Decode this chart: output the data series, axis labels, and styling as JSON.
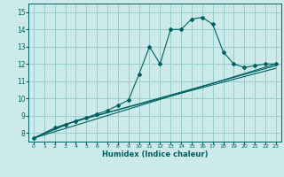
{
  "title": "",
  "xlabel": "Humidex (Indice chaleur)",
  "ylabel": "",
  "bg_color": "#cceaea",
  "line_color": "#006060",
  "grid_color": "#99cccc",
  "xlim": [
    -0.5,
    23.5
  ],
  "ylim": [
    7.5,
    15.5
  ],
  "xticks": [
    0,
    1,
    2,
    3,
    4,
    5,
    6,
    7,
    8,
    9,
    10,
    11,
    12,
    13,
    14,
    15,
    16,
    17,
    18,
    19,
    20,
    21,
    22,
    23
  ],
  "yticks": [
    8,
    9,
    10,
    11,
    12,
    13,
    14,
    15
  ],
  "series": [
    {
      "x": [
        0,
        2,
        3,
        4,
        5,
        6,
        7,
        8,
        9,
        10,
        11,
        12,
        13,
        14,
        15,
        16,
        17,
        18,
        19,
        20,
        21,
        22,
        23
      ],
      "y": [
        7.7,
        8.3,
        8.5,
        8.7,
        8.9,
        9.1,
        9.3,
        9.6,
        9.9,
        11.4,
        13.0,
        12.0,
        14.0,
        14.0,
        14.6,
        14.7,
        14.3,
        12.7,
        12.0,
        11.8,
        11.9,
        12.0,
        12.0
      ],
      "marker": "D",
      "markersize": 2.0
    },
    {
      "x": [
        0,
        23
      ],
      "y": [
        7.7,
        12.0
      ],
      "marker": null,
      "markersize": 0
    },
    {
      "x": [
        0,
        3,
        23
      ],
      "y": [
        7.7,
        8.5,
        11.9
      ],
      "marker": null,
      "markersize": 0
    },
    {
      "x": [
        0,
        4,
        23
      ],
      "y": [
        7.7,
        8.7,
        11.75
      ],
      "marker": null,
      "markersize": 0
    }
  ]
}
